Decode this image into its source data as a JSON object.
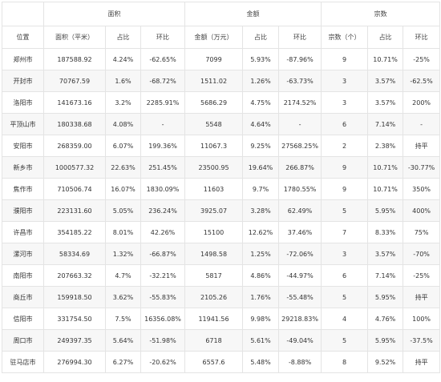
{
  "groups": [
    "面积",
    "金额",
    "宗数"
  ],
  "columns": [
    "位置",
    "面积（平米）",
    "占比",
    "环比",
    "金额（万元）",
    "占比",
    "环比",
    "宗数（个）",
    "占比",
    "环比"
  ],
  "rows": [
    [
      "郑州市",
      "187588.92",
      "4.24%",
      "-62.65%",
      "7099",
      "5.93%",
      "-87.96%",
      "9",
      "10.71%",
      "-25%"
    ],
    [
      "开封市",
      "70767.59",
      "1.6%",
      "-68.72%",
      "1511.02",
      "1.26%",
      "-63.73%",
      "3",
      "3.57%",
      "-62.5%"
    ],
    [
      "洛阳市",
      "141673.16",
      "3.2%",
      "2285.91%",
      "5686.29",
      "4.75%",
      "2174.52%",
      "3",
      "3.57%",
      "200%"
    ],
    [
      "平顶山市",
      "180338.68",
      "4.08%",
      "-",
      "5548",
      "4.64%",
      "-",
      "6",
      "7.14%",
      "-"
    ],
    [
      "安阳市",
      "268359.00",
      "6.07%",
      "199.36%",
      "11067.3",
      "9.25%",
      "27568.25%",
      "2",
      "2.38%",
      "持平"
    ],
    [
      "新乡市",
      "1000577.32",
      "22.63%",
      "251.45%",
      "23500.95",
      "19.64%",
      "266.87%",
      "9",
      "10.71%",
      "-30.77%"
    ],
    [
      "焦作市",
      "710506.74",
      "16.07%",
      "1830.09%",
      "11603",
      "9.7%",
      "1780.55%",
      "9",
      "10.71%",
      "350%"
    ],
    [
      "濮阳市",
      "223131.60",
      "5.05%",
      "236.24%",
      "3925.07",
      "3.28%",
      "62.49%",
      "5",
      "5.95%",
      "400%"
    ],
    [
      "许昌市",
      "354185.22",
      "8.01%",
      "42.26%",
      "15100",
      "12.62%",
      "37.46%",
      "7",
      "8.33%",
      "75%"
    ],
    [
      "漯河市",
      "58334.69",
      "1.32%",
      "-66.87%",
      "1498.58",
      "1.25%",
      "-72.06%",
      "3",
      "3.57%",
      "-70%"
    ],
    [
      "南阳市",
      "207663.32",
      "4.7%",
      "-32.21%",
      "5817",
      "4.86%",
      "-44.97%",
      "6",
      "7.14%",
      "-25%"
    ],
    [
      "商丘市",
      "159918.50",
      "3.62%",
      "-55.83%",
      "2105.26",
      "1.76%",
      "-55.48%",
      "5",
      "5.95%",
      "持平"
    ],
    [
      "信阳市",
      "331754.50",
      "7.5%",
      "16356.08%",
      "11941.56",
      "9.98%",
      "29218.83%",
      "4",
      "4.76%",
      "100%"
    ],
    [
      "周口市",
      "249397.35",
      "5.64%",
      "-51.98%",
      "6718",
      "5.61%",
      "-49.04%",
      "5",
      "5.95%",
      "-37.5%"
    ],
    [
      "驻马店市",
      "276994.30",
      "6.27%",
      "-20.62%",
      "6557.6",
      "5.48%",
      "-8.88%",
      "8",
      "9.52%",
      "持平"
    ]
  ]
}
